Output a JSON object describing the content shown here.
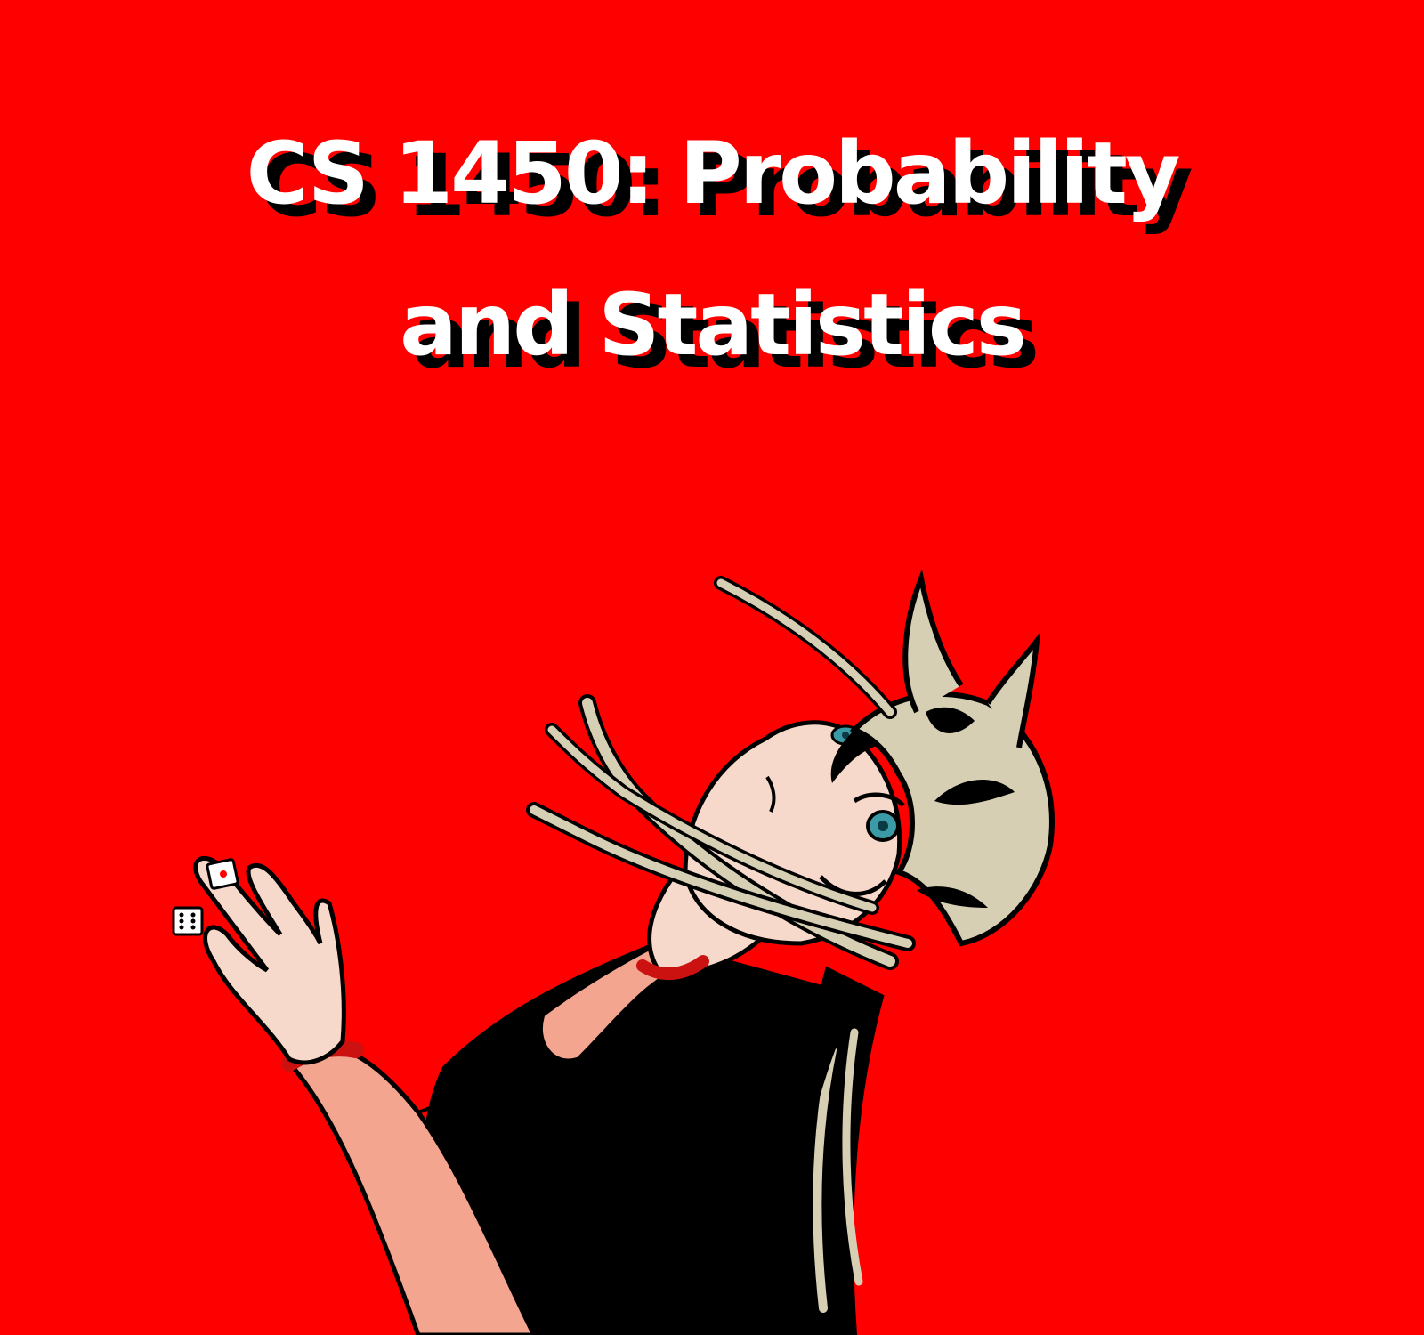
{
  "cover": {
    "title_line1": "CS 1450: Probability",
    "title_line2": "and Statistics"
  },
  "colors": {
    "background": "#ff0000",
    "title_text": "#ffffff",
    "title_shadow": "#000000",
    "hair": "#d6cfb4",
    "skin": "#f7d9cc",
    "arm": "#f3a58f",
    "eyes": "#3a9aa6",
    "outfit": "#000000",
    "band": "#cc1111"
  },
  "icons": [
    "character-illustration",
    "die-icon",
    "die-icon"
  ]
}
